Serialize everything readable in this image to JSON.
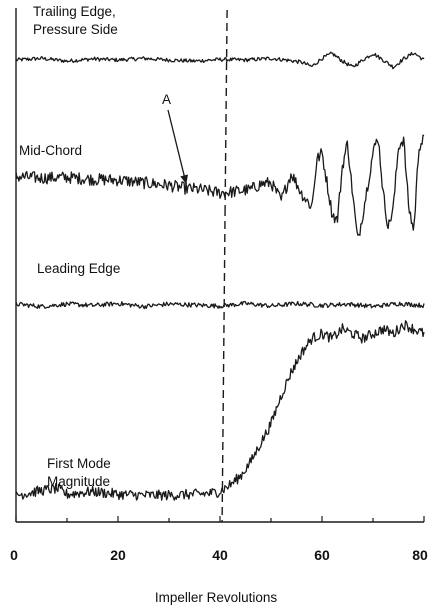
{
  "chart_data": {
    "type": "line",
    "title": "",
    "xlabel": "Impeller Revolutions",
    "ylabel": "",
    "xlim": [
      0,
      80
    ],
    "xticks": [
      0,
      20,
      40,
      60,
      80
    ],
    "grid": false,
    "marker_line_x": 41,
    "series": [
      {
        "label_lines": [
          "Trailing Edge,",
          "Pressure Side"
        ],
        "baseline": 0,
        "points": [
          [
            0,
            0
          ],
          [
            5,
            0.3
          ],
          [
            10,
            -0.2
          ],
          [
            15,
            0.2
          ],
          [
            20,
            0
          ],
          [
            25,
            0.3
          ],
          [
            30,
            0
          ],
          [
            35,
            -0.2
          ],
          [
            40,
            0.1
          ],
          [
            45,
            0
          ],
          [
            50,
            0.3
          ],
          [
            53,
            0
          ],
          [
            56,
            -0.4
          ],
          [
            58,
            -1.2
          ],
          [
            60,
            0.3
          ],
          [
            62,
            1.2
          ],
          [
            64,
            -0.2
          ],
          [
            66,
            -1.3
          ],
          [
            68,
            0
          ],
          [
            70,
            1.2
          ],
          [
            72,
            0
          ],
          [
            74,
            -1.3
          ],
          [
            76,
            0.2
          ],
          [
            78,
            1.3
          ],
          [
            80,
            0
          ]
        ]
      },
      {
        "label_lines": [
          "Mid-Chord"
        ],
        "baseline": 0,
        "points": [
          [
            0,
            0.5
          ],
          [
            5,
            0.3
          ],
          [
            10,
            0.4
          ],
          [
            15,
            0.1
          ],
          [
            20,
            0
          ],
          [
            25,
            -0.4
          ],
          [
            30,
            -0.8
          ],
          [
            33,
            -1.2
          ],
          [
            36,
            -1.4
          ],
          [
            40,
            -1.9
          ],
          [
            43,
            -1.7
          ],
          [
            46,
            -1.4
          ],
          [
            48,
            -0.6
          ],
          [
            50,
            -0.4
          ],
          [
            52,
            -3
          ],
          [
            54,
            1
          ],
          [
            56,
            -2
          ],
          [
            58,
            -4
          ],
          [
            59,
            3
          ],
          [
            60,
            4
          ],
          [
            62,
            -5
          ],
          [
            63,
            -6
          ],
          [
            64,
            2
          ],
          [
            65,
            5.5
          ],
          [
            66,
            -2
          ],
          [
            67,
            -9
          ],
          [
            68,
            -5
          ],
          [
            70,
            4
          ],
          [
            71,
            6.5
          ],
          [
            72,
            -2
          ],
          [
            73,
            -7
          ],
          [
            74,
            -4
          ],
          [
            75,
            5
          ],
          [
            76,
            6
          ],
          [
            77,
            -4
          ],
          [
            78,
            -7.5
          ],
          [
            79,
            5
          ],
          [
            80,
            6
          ]
        ],
        "annotation": "A",
        "annotation_x": 33
      },
      {
        "label_lines": [
          "Leading Edge"
        ],
        "baseline": 0,
        "points": [
          [
            0,
            0.2
          ],
          [
            5,
            -0.3
          ],
          [
            10,
            0.2
          ],
          [
            15,
            -0.1
          ],
          [
            20,
            0.3
          ],
          [
            25,
            -0.3
          ],
          [
            30,
            0.2
          ],
          [
            35,
            0
          ],
          [
            40,
            -0.2
          ],
          [
            45,
            0.3
          ],
          [
            50,
            -0.2
          ],
          [
            55,
            0.3
          ],
          [
            60,
            -0.1
          ],
          [
            65,
            0.2
          ],
          [
            70,
            -0.3
          ],
          [
            75,
            0.3
          ],
          [
            80,
            -0.1
          ]
        ]
      },
      {
        "label_lines": [
          "First Mode",
          "Magnitude"
        ],
        "baseline": 0,
        "points": [
          [
            0,
            0.5
          ],
          [
            5,
            1
          ],
          [
            8,
            1.2
          ],
          [
            10,
            0.6
          ],
          [
            15,
            0.9
          ],
          [
            20,
            0.6
          ],
          [
            25,
            0.5
          ],
          [
            30,
            0.5
          ],
          [
            35,
            0.6
          ],
          [
            38,
            0.7
          ],
          [
            40,
            0.9
          ],
          [
            42,
            1.6
          ],
          [
            44,
            2.5
          ],
          [
            46,
            4
          ],
          [
            48,
            6
          ],
          [
            50,
            8
          ],
          [
            52,
            11
          ],
          [
            54,
            13.5
          ],
          [
            56,
            15.5
          ],
          [
            58,
            17
          ],
          [
            60,
            17.5
          ],
          [
            62,
            17
          ],
          [
            64,
            18
          ],
          [
            66,
            17.5
          ],
          [
            68,
            17
          ],
          [
            70,
            17.5
          ],
          [
            72,
            18
          ],
          [
            74,
            17.5
          ],
          [
            76,
            18.5
          ],
          [
            78,
            18
          ],
          [
            80,
            17.5
          ]
        ]
      }
    ]
  }
}
